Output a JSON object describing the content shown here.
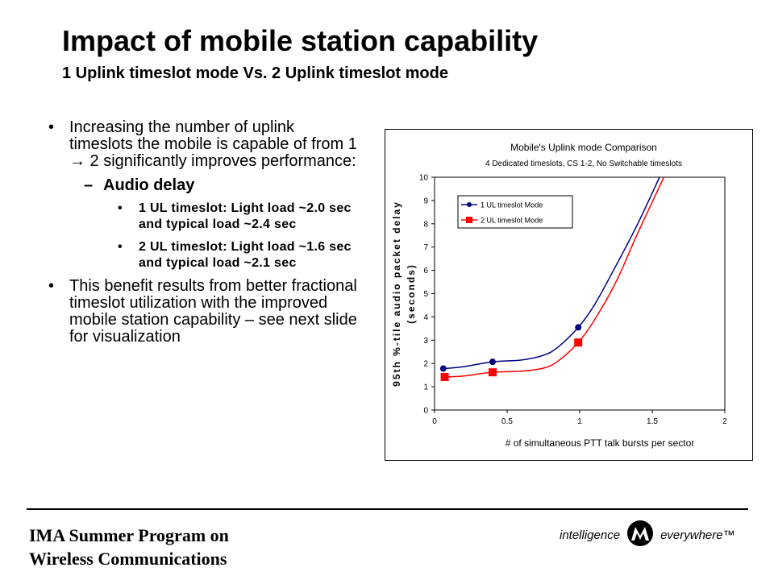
{
  "slide": {
    "title": "Impact of mobile station capability",
    "subtitle": "1 Uplink timeslot mode Vs. 2 Uplink timeslot mode"
  },
  "bullets": {
    "marker": "•",
    "dash": "–",
    "b1": "Increasing the number of uplink timeslots the mobile is capable of from 1 → 2 significantly improves performance:",
    "b1_sub": "Audio delay",
    "b1_sub_items": [
      "1 UL timeslot: Light load ~2.0 sec and typical load ~2.4 sec",
      "2 UL timeslot: Light load ~1.6 sec and typical load ~2.1 sec"
    ],
    "b2": "This benefit results from better fractional timeslot utilization with the improved mobile station capability – see next slide for visualization"
  },
  "chart_data": {
    "type": "line",
    "title": "Mobile's Uplink mode Comparison",
    "subtitle": "4 Dedicated timeslots, CS 1-2, No Switchable timeslots",
    "xlabel": "# of simultaneous PTT talk bursts per sector",
    "ylabel": "95th %-tile audio packet delay",
    "ylabel2": "(seconds)",
    "xlim": [
      0,
      2
    ],
    "ylim": [
      0,
      10
    ],
    "xticks": [
      0,
      0.5,
      1,
      1.5,
      2
    ],
    "xtick_labels": [
      "0",
      "0.5",
      "1",
      "1.5",
      "2"
    ],
    "yticks": [
      0,
      1,
      2,
      3,
      4,
      5,
      6,
      7,
      8,
      9,
      10
    ],
    "legend_position": "top-left",
    "series": [
      {
        "name": "1 UL timeslot Mode",
        "color": "#000080",
        "marker": "circle",
        "points": [
          [
            0.06,
            1.78
          ],
          [
            0.4,
            2.07
          ],
          [
            0.99,
            3.55
          ]
        ],
        "curve": [
          [
            0.06,
            1.78
          ],
          [
            0.2,
            1.86
          ],
          [
            0.4,
            2.07
          ],
          [
            0.6,
            2.15
          ],
          [
            0.75,
            2.35
          ],
          [
            0.85,
            2.7
          ],
          [
            0.99,
            3.55
          ],
          [
            1.1,
            4.5
          ],
          [
            1.25,
            6.2
          ],
          [
            1.4,
            8.0
          ],
          [
            1.55,
            10.0
          ]
        ]
      },
      {
        "name": "2 UL timeslot Mode",
        "color": "#ff0000",
        "marker": "square",
        "points": [
          [
            0.07,
            1.42
          ],
          [
            0.4,
            1.62
          ],
          [
            0.99,
            2.9
          ]
        ],
        "curve": [
          [
            0.07,
            1.42
          ],
          [
            0.2,
            1.46
          ],
          [
            0.4,
            1.62
          ],
          [
            0.6,
            1.67
          ],
          [
            0.75,
            1.8
          ],
          [
            0.85,
            2.1
          ],
          [
            0.99,
            2.9
          ],
          [
            1.1,
            3.85
          ],
          [
            1.25,
            5.5
          ],
          [
            1.4,
            7.6
          ],
          [
            1.58,
            10.0
          ]
        ]
      }
    ]
  },
  "footer": {
    "line1": "IMA Summer Program on",
    "line2": "Wireless Communications"
  },
  "logo": {
    "left": "intelligence",
    "right": "everywhere™"
  }
}
